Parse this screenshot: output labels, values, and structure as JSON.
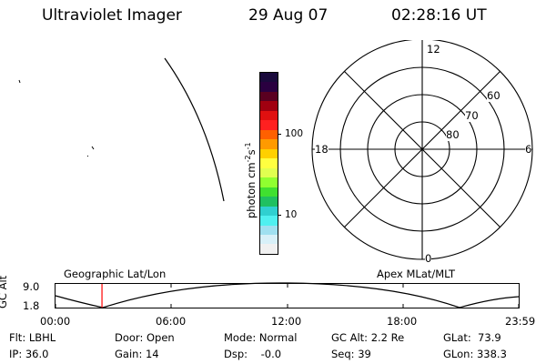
{
  "header": {
    "title": "Ultraviolet Imager",
    "date": "29 Aug 07",
    "time": "02:28:16 UT"
  },
  "colorbar": {
    "label": "photon cm",
    "label_exp1": "-2",
    "label_mid": "s",
    "label_exp2": "-1",
    "ticks": [
      "100",
      "10"
    ],
    "colors": [
      "#1a0a3c",
      "#2a0040",
      "#5a0020",
      "#a00010",
      "#e01010",
      "#ff2020",
      "#ff6000",
      "#ff9a00",
      "#ffd000",
      "#ffff40",
      "#e0ff50",
      "#90ff30",
      "#40e030",
      "#20c060",
      "#30d0d0",
      "#50f0f0",
      "#a0e0f0",
      "#d8f0f8",
      "#f0f0f0"
    ]
  },
  "polar": {
    "labels": {
      "noon": "12",
      "midnight": "0",
      "dusk": "18",
      "dawn": "6",
      "lat60": "60",
      "lat70": "70",
      "lat80": "80"
    }
  },
  "timeline": {
    "left_label": "Geographic Lat/Lon",
    "right_label": "Apex MLat/MLT",
    "y_axis_label": "GC Alt",
    "y_ticks": [
      "9.0",
      "1.8"
    ],
    "x_ticks": [
      "00:00",
      "06:00",
      "12:00",
      "18:00",
      "23:59"
    ],
    "marker_color": "#ff0000",
    "marker_time_fraction": 0.1003
  },
  "status": {
    "flt": "Flt: LBHL",
    "ip": "IP: 36.0",
    "door": "Door: Open",
    "gain": "Gain: 14",
    "mode": "Mode: Normal",
    "dsp": "Dsp:    -0.0",
    "gc_alt": "GC Alt: 2.2 Re",
    "seq": "Seq: 39",
    "glat": "GLat:  73.9",
    "glon": "GLon: 338.3"
  }
}
